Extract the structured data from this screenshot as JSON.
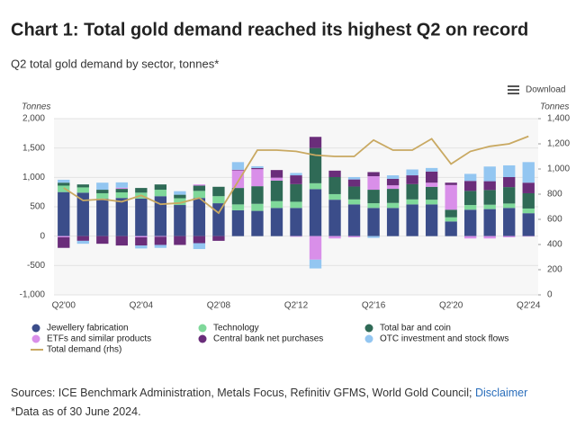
{
  "chart_data": {
    "type": "bar",
    "stacked": true,
    "title": "Chart 1: Total gold demand reached its highest Q2 on record",
    "subtitle": "Q2 total gold demand by sector, tonnes*",
    "download": "Download",
    "ylabel": "Tonnes",
    "y2label": "Tonnes",
    "categories": [
      "Q2'00",
      null,
      null,
      null,
      "Q2'04",
      null,
      null,
      null,
      "Q2'08",
      null,
      null,
      null,
      "Q2'12",
      null,
      null,
      null,
      "Q2'16",
      null,
      null,
      null,
      "Q2'20",
      null,
      null,
      null,
      "Q2'24"
    ],
    "ylim": [
      -1000,
      2000
    ],
    "yticks": [
      {
        "value": -1000,
        "label": "-1,000"
      },
      -500,
      0,
      500,
      {
        "value": 1000,
        "label": "1,000"
      },
      {
        "value": 1500,
        "label": "1,500"
      },
      {
        "value": 2000,
        "label": "2,000"
      }
    ],
    "y2lim": [
      0,
      1400
    ],
    "y2ticks": [
      0,
      200,
      400,
      600,
      800,
      {
        "value": 1000,
        "label": "1,000"
      },
      {
        "value": 1200,
        "label": "1,200"
      },
      {
        "value": 1400,
        "label": "1,400"
      }
    ],
    "grid": true,
    "series": [
      {
        "name": "Jewellery fabrication",
        "color": "#3b4d8a",
        "values": [
          750,
          740,
          640,
          650,
          640,
          680,
          530,
          650,
          560,
          440,
          430,
          480,
          480,
          800,
          620,
          540,
          480,
          480,
          540,
          540,
          250,
          450,
          460,
          480,
          390
        ]
      },
      {
        "name": "Technology",
        "color": "#7fd89a",
        "values": [
          110,
          90,
          90,
          95,
          100,
          110,
          115,
          120,
          120,
          100,
          120,
          115,
          105,
          100,
          95,
          85,
          80,
          85,
          85,
          80,
          70,
          80,
          75,
          75,
          80
        ]
      },
      {
        "name": "Total bar and coin",
        "color": "#2f6a56",
        "values": [
          50,
          50,
          60,
          60,
          80,
          90,
          60,
          90,
          160,
          280,
          300,
          350,
          300,
          600,
          290,
          220,
          230,
          240,
          260,
          220,
          130,
          240,
          250,
          280,
          260
        ]
      },
      {
        "name": "ETFs and similar products",
        "color": "#d98fe9",
        "values": [
          -20,
          0,
          0,
          20,
          -20,
          -10,
          0,
          20,
          0,
          300,
          290,
          50,
          -10,
          -400,
          -40,
          -20,
          230,
          60,
          0,
          70,
          420,
          -40,
          -40,
          -20,
          -7
        ]
      },
      {
        "name": "Central bank net purchases",
        "color": "#6a2d7a",
        "values": [
          -180,
          -80,
          -130,
          -160,
          -140,
          -140,
          -150,
          -120,
          -80,
          10,
          20,
          130,
          150,
          190,
          110,
          120,
          70,
          110,
          150,
          190,
          40,
          170,
          150,
          170,
          180
        ]
      },
      {
        "name": "OTC investment and stock flows",
        "color": "#93c6f1",
        "values": [
          50,
          -50,
          120,
          90,
          -50,
          -50,
          60,
          -100,
          0,
          130,
          30,
          0,
          40,
          -150,
          0,
          40,
          -30,
          60,
          100,
          60,
          0,
          120,
          250,
          200,
          350
        ]
      },
      {
        "name": "Total demand (rhs)",
        "color": "#c9a962",
        "axis": "y2",
        "values": [
          850,
          750,
          760,
          740,
          790,
          720,
          730,
          770,
          650,
          900,
          1150,
          1150,
          1140,
          1110,
          1100,
          1100,
          1230,
          1150,
          1150,
          1240,
          1040,
          1140,
          1180,
          1200,
          1260
        ]
      }
    ],
    "source": "Sources: ICE Benchmark Administration, Metals Focus, Refinitiv GFMS, World Gold Council;",
    "disclaimer": "Disclaimer",
    "note": "*Data as of 30 June 2024."
  }
}
